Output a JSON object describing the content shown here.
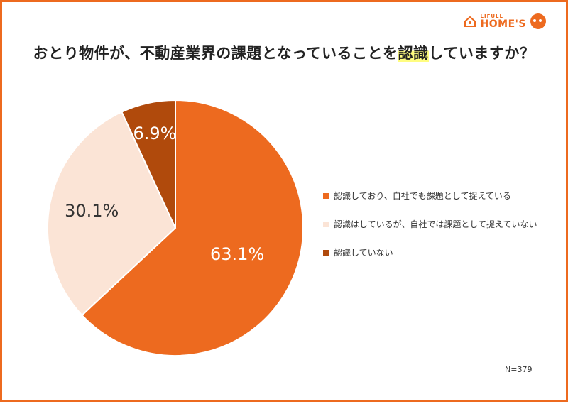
{
  "header": {
    "logo_small": "LIFULL",
    "logo_big": "HOME'S",
    "title_before": "おとり物件が、不動産業界の課題となっていることを",
    "title_highlight": "認識",
    "title_after": "していますか？"
  },
  "chart_data": {
    "type": "pie",
    "title": "おとり物件が、不動産業界の課題となっていることを認識していますか？",
    "slices": [
      {
        "label": "認識しており、自社でも課題として捉えている",
        "value": 63.1,
        "display": "63.1%",
        "color": "#ed6a1f",
        "text_color": "#ffffff"
      },
      {
        "label": "認識はしているが、自社では課題として捉えていない",
        "value": 30.1,
        "display": "30.1%",
        "color": "#fbe4d6",
        "text_color": "#333333"
      },
      {
        "label": "認識していない",
        "value": 6.9,
        "display": "6.9%",
        "color": "#b04a0c",
        "text_color": "#ffffff"
      }
    ],
    "start": "12 o'clock",
    "direction": "clockwise",
    "legend_position": "right"
  },
  "footnote": "N=379"
}
